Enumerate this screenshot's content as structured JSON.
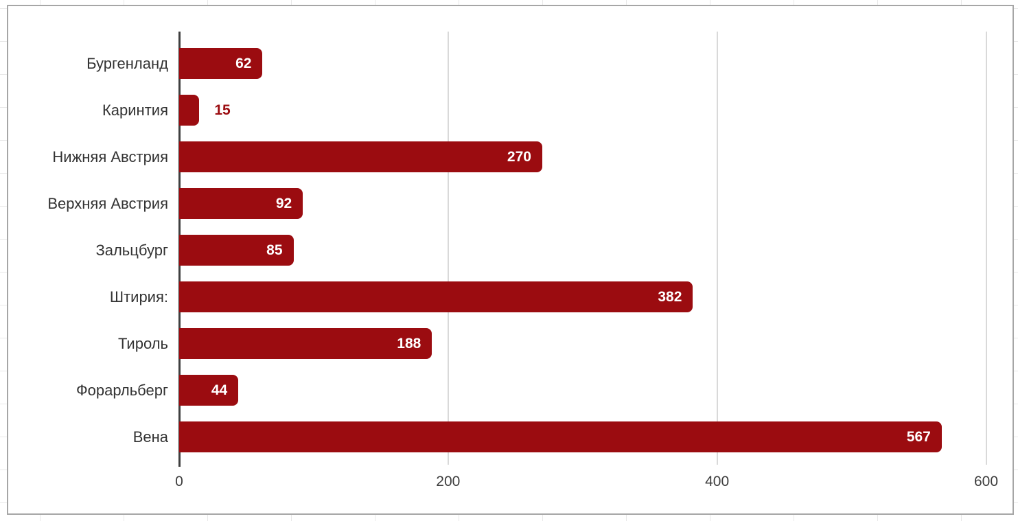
{
  "chart_data": {
    "type": "bar",
    "orientation": "horizontal",
    "title": "",
    "categories": [
      "Бургенланд",
      "Каринтия",
      "Нижняя Австрия",
      "Верхняя Австрия",
      "Зальцбург",
      "Штирия:",
      "Тироль",
      "Форарльберг",
      "Вена"
    ],
    "values": [
      62,
      15,
      270,
      92,
      85,
      382,
      188,
      44,
      567
    ],
    "xlabel": "",
    "ylabel": "",
    "xlim": [
      0,
      600
    ],
    "xticks": [
      0,
      200,
      400,
      600
    ],
    "grid": true,
    "legend": false,
    "value_labels_shown": true
  },
  "colors": {
    "bar": "#9b0c10",
    "value_label_inside": "#ffffff",
    "value_label_outside": "#9b0c10",
    "gridline": "#d9d9d9",
    "axis_line": "#3f3f3f",
    "category_label": "#333333",
    "tick_label": "#3c3c3c",
    "chart_border": "#a6a6a6",
    "spreadsheet_line": "#e8e8e8",
    "background": "#ffffff"
  }
}
